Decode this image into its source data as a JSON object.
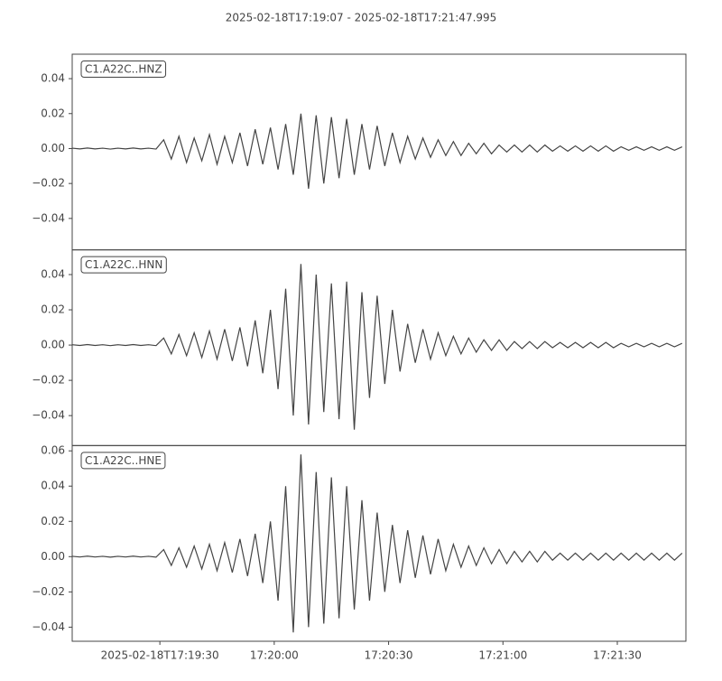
{
  "chart_data": {
    "type": "line",
    "title": "2025-02-18T17:19:07  -  2025-02-18T17:21:47.995",
    "xlim": [
      "2025-02-18T17:19:07",
      "2025-02-18T17:21:47.995"
    ],
    "xticks": [
      "2025-02-18T17:19:30",
      {
        "value": "2025-02-18T17:20:00",
        "label": "17:20:00"
      },
      {
        "value": "2025-02-18T17:20:30",
        "label": "17:20:30"
      },
      {
        "value": "2025-02-18T17:21:00",
        "label": "17:21:00"
      },
      {
        "value": "2025-02-18T17:21:30",
        "label": "17:21:30"
      }
    ],
    "x": [
      "2025-02-18T17:19:07",
      "2025-02-18T17:19:09",
      "2025-02-18T17:19:11",
      "2025-02-18T17:19:13",
      "2025-02-18T17:19:15",
      "2025-02-18T17:19:17",
      "2025-02-18T17:19:19",
      "2025-02-18T17:19:21",
      "2025-02-18T17:19:23",
      "2025-02-18T17:19:25",
      "2025-02-18T17:19:27",
      "2025-02-18T17:19:29",
      "2025-02-18T17:19:31",
      "2025-02-18T17:19:33",
      "2025-02-18T17:19:35",
      "2025-02-18T17:19:37",
      "2025-02-18T17:19:39",
      "2025-02-18T17:19:41",
      "2025-02-18T17:19:43",
      "2025-02-18T17:19:45",
      "2025-02-18T17:19:47",
      "2025-02-18T17:19:49",
      "2025-02-18T17:19:51",
      "2025-02-18T17:19:53",
      "2025-02-18T17:19:55",
      "2025-02-18T17:19:57",
      "2025-02-18T17:19:59",
      "2025-02-18T17:20:01",
      "2025-02-18T17:20:03",
      "2025-02-18T17:20:05",
      "2025-02-18T17:20:07",
      "2025-02-18T17:20:09",
      "2025-02-18T17:20:11",
      "2025-02-18T17:20:13",
      "2025-02-18T17:20:15",
      "2025-02-18T17:20:17",
      "2025-02-18T17:20:19",
      "2025-02-18T17:20:21",
      "2025-02-18T17:20:23",
      "2025-02-18T17:20:25",
      "2025-02-18T17:20:27",
      "2025-02-18T17:20:29",
      "2025-02-18T17:20:31",
      "2025-02-18T17:20:33",
      "2025-02-18T17:20:35",
      "2025-02-18T17:20:37",
      "2025-02-18T17:20:39",
      "2025-02-18T17:20:41",
      "2025-02-18T17:20:43",
      "2025-02-18T17:20:45",
      "2025-02-18T17:20:47",
      "2025-02-18T17:20:49",
      "2025-02-18T17:20:51",
      "2025-02-18T17:20:53",
      "2025-02-18T17:20:55",
      "2025-02-18T17:20:57",
      "2025-02-18T17:20:59",
      "2025-02-18T17:21:01",
      "2025-02-18T17:21:03",
      "2025-02-18T17:21:05",
      "2025-02-18T17:21:07",
      "2025-02-18T17:21:09",
      "2025-02-18T17:21:11",
      "2025-02-18T17:21:13",
      "2025-02-18T17:21:15",
      "2025-02-18T17:21:17",
      "2025-02-18T17:21:19",
      "2025-02-18T17:21:21",
      "2025-02-18T17:21:23",
      "2025-02-18T17:21:25",
      "2025-02-18T17:21:27",
      "2025-02-18T17:21:29",
      "2025-02-18T17:21:31",
      "2025-02-18T17:21:33",
      "2025-02-18T17:21:35",
      "2025-02-18T17:21:37",
      "2025-02-18T17:21:39",
      "2025-02-18T17:21:41",
      "2025-02-18T17:21:43",
      "2025-02-18T17:21:45",
      "2025-02-18T17:21:47"
    ],
    "series": [
      {
        "name": "C1.A22C..HNZ",
        "color": "#444444",
        "ylim": [
          -0.058,
          0.054
        ],
        "yticks": [
          {
            "value": -0.04,
            "label": "−0.04"
          },
          {
            "value": -0.02,
            "label": "−0.02"
          },
          {
            "value": 0,
            "label": "0.00"
          },
          {
            "value": 0.02,
            "label": "0.02"
          },
          {
            "value": 0.04,
            "label": "0.04"
          }
        ],
        "values": [
          0.0002,
          -0.0002,
          0.0003,
          -0.0002,
          0.0002,
          -0.0003,
          0.0002,
          -0.0002,
          0.0003,
          -0.0002,
          0.0002,
          -0.0003,
          0.005,
          -0.006,
          0.007,
          -0.008,
          0.006,
          -0.007,
          0.008,
          -0.009,
          0.007,
          -0.008,
          0.009,
          -0.01,
          0.011,
          -0.009,
          0.012,
          -0.012,
          0.014,
          -0.015,
          0.02,
          -0.023,
          0.019,
          -0.02,
          0.018,
          -0.017,
          0.017,
          -0.015,
          0.014,
          -0.012,
          0.013,
          -0.01,
          0.009,
          -0.008,
          0.007,
          -0.006,
          0.006,
          -0.005,
          0.005,
          -0.004,
          0.004,
          -0.004,
          0.003,
          -0.003,
          0.003,
          -0.003,
          0.002,
          -0.002,
          0.002,
          -0.002,
          0.002,
          -0.002,
          0.002,
          -0.0015,
          0.0015,
          -0.0015,
          0.0015,
          -0.0015,
          0.0015,
          -0.0015,
          0.0015,
          -0.0015,
          0.001,
          -0.001,
          0.001,
          -0.001,
          0.001,
          -0.001,
          0.001,
          -0.001,
          0.001
        ]
      },
      {
        "name": "C1.A22C..HNN",
        "color": "#444444",
        "ylim": [
          -0.057,
          0.054
        ],
        "yticks": [
          {
            "value": -0.04,
            "label": "−0.04"
          },
          {
            "value": -0.02,
            "label": "−0.02"
          },
          {
            "value": 0,
            "label": "0.00"
          },
          {
            "value": 0.02,
            "label": "0.02"
          },
          {
            "value": 0.04,
            "label": "0.04"
          }
        ],
        "values": [
          0.0002,
          -0.0002,
          0.0003,
          -0.0002,
          0.0002,
          -0.0003,
          0.0002,
          -0.0002,
          0.0003,
          -0.0002,
          0.0002,
          -0.0003,
          0.004,
          -0.005,
          0.006,
          -0.006,
          0.007,
          -0.007,
          0.008,
          -0.008,
          0.009,
          -0.009,
          0.01,
          -0.012,
          0.014,
          -0.016,
          0.02,
          -0.025,
          0.032,
          -0.04,
          0.046,
          -0.045,
          0.04,
          -0.038,
          0.035,
          -0.042,
          0.036,
          -0.048,
          0.03,
          -0.03,
          0.028,
          -0.022,
          0.02,
          -0.015,
          0.012,
          -0.01,
          0.009,
          -0.008,
          0.007,
          -0.006,
          0.005,
          -0.005,
          0.004,
          -0.004,
          0.003,
          -0.003,
          0.003,
          -0.003,
          0.002,
          -0.002,
          0.002,
          -0.002,
          0.002,
          -0.0015,
          0.0015,
          -0.0015,
          0.0015,
          -0.0015,
          0.0015,
          -0.0015,
          0.0015,
          -0.0015,
          0.001,
          -0.001,
          0.001,
          -0.001,
          0.001,
          -0.001,
          0.001,
          -0.001,
          0.001
        ]
      },
      {
        "name": "C1.A22C..HNE",
        "color": "#444444",
        "ylim": [
          -0.048,
          0.063
        ],
        "yticks": [
          {
            "value": -0.04,
            "label": "−0.04"
          },
          {
            "value": -0.02,
            "label": "−0.02"
          },
          {
            "value": 0,
            "label": "0.00"
          },
          {
            "value": 0.02,
            "label": "0.02"
          },
          {
            "value": 0.04,
            "label": "0.04"
          },
          {
            "value": 0.06,
            "label": "0.06"
          }
        ],
        "values": [
          0.0002,
          -0.0002,
          0.0003,
          -0.0002,
          0.0002,
          -0.0003,
          0.0002,
          -0.0002,
          0.0003,
          -0.0002,
          0.0002,
          -0.0003,
          0.004,
          -0.005,
          0.005,
          -0.006,
          0.006,
          -0.007,
          0.007,
          -0.008,
          0.008,
          -0.009,
          0.01,
          -0.011,
          0.013,
          -0.015,
          0.02,
          -0.025,
          0.04,
          -0.043,
          0.058,
          -0.04,
          0.048,
          -0.038,
          0.045,
          -0.035,
          0.04,
          -0.03,
          0.032,
          -0.025,
          0.025,
          -0.02,
          0.018,
          -0.015,
          0.015,
          -0.012,
          0.012,
          -0.01,
          0.01,
          -0.008,
          0.007,
          -0.006,
          0.006,
          -0.005,
          0.005,
          -0.004,
          0.004,
          -0.004,
          0.003,
          -0.003,
          0.003,
          -0.003,
          0.003,
          -0.002,
          0.002,
          -0.002,
          0.002,
          -0.002,
          0.002,
          -0.002,
          0.002,
          -0.002,
          0.002,
          -0.002,
          0.002,
          -0.002,
          0.002,
          -0.002,
          0.002,
          -0.002,
          0.002
        ]
      }
    ]
  }
}
